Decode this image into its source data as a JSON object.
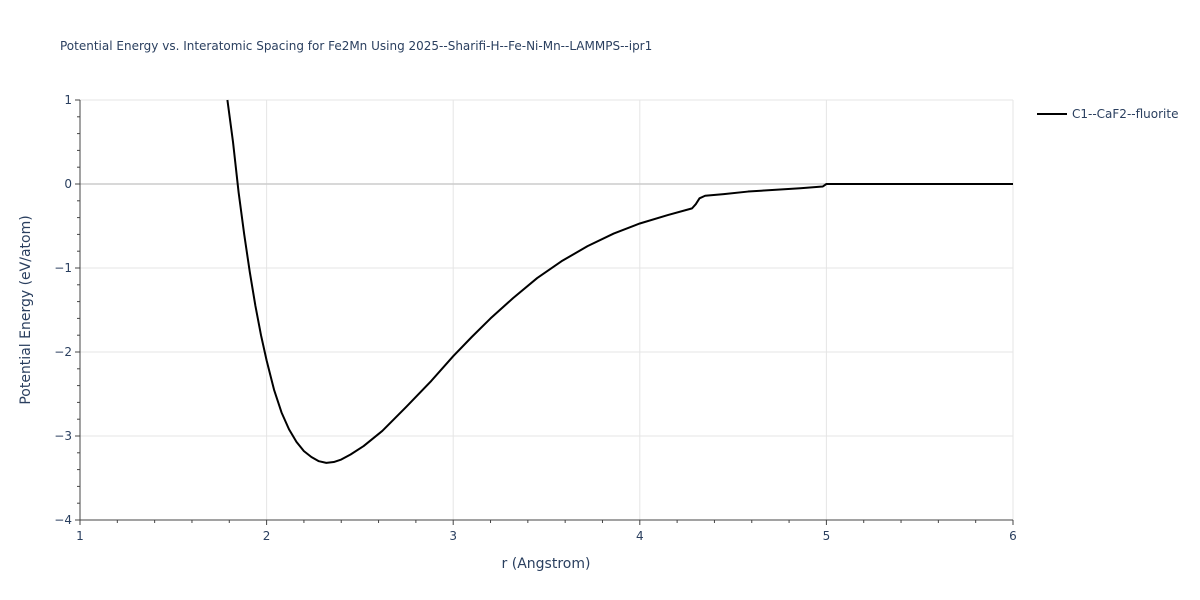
{
  "chart_data": {
    "type": "line",
    "title": "Potential Energy vs. Interatomic Spacing for Fe2Mn Using 2025--Sharifi-H--Fe-Ni-Mn--LAMMPS--ipr1",
    "xlabel": "r (Angstrom)",
    "ylabel": "Potential Energy (eV/atom)",
    "xlim": [
      1,
      6
    ],
    "ylim": [
      -4,
      1
    ],
    "x_ticks": [
      1,
      2,
      3,
      4,
      5,
      6
    ],
    "x_tick_labels": [
      "1",
      "2",
      "3",
      "4",
      "5",
      "6"
    ],
    "y_ticks": [
      1,
      0,
      -1,
      -2,
      -3,
      -4
    ],
    "y_tick_labels": [
      "1",
      "0",
      "−1",
      "−2",
      "−3",
      "−4"
    ],
    "grid": true,
    "legend_position": "top-right",
    "series": [
      {
        "name": "C1--CaF2--fluorite",
        "color": "#000000",
        "x": [
          1.79,
          1.82,
          1.85,
          1.88,
          1.91,
          1.94,
          1.97,
          2.0,
          2.04,
          2.08,
          2.12,
          2.16,
          2.2,
          2.24,
          2.28,
          2.32,
          2.36,
          2.4,
          2.45,
          2.52,
          2.62,
          2.75,
          2.88,
          3.0,
          3.1,
          3.2,
          3.32,
          3.45,
          3.58,
          3.72,
          3.86,
          4.0,
          4.15,
          4.28,
          4.3,
          4.32,
          4.35,
          4.45,
          4.58,
          4.72,
          4.86,
          4.98,
          5.0,
          5.2,
          5.5,
          5.8,
          6.0
        ],
        "y": [
          1.0,
          0.5,
          -0.1,
          -0.6,
          -1.05,
          -1.45,
          -1.8,
          -2.1,
          -2.45,
          -2.72,
          -2.92,
          -3.07,
          -3.18,
          -3.25,
          -3.3,
          -3.32,
          -3.31,
          -3.28,
          -3.22,
          -3.12,
          -2.94,
          -2.65,
          -2.35,
          -2.05,
          -1.82,
          -1.6,
          -1.36,
          -1.12,
          -0.92,
          -0.74,
          -0.59,
          -0.47,
          -0.37,
          -0.29,
          -0.24,
          -0.17,
          -0.14,
          -0.12,
          -0.09,
          -0.07,
          -0.05,
          -0.03,
          0.0,
          0.0,
          0.0,
          0.0,
          0.0
        ]
      }
    ]
  }
}
